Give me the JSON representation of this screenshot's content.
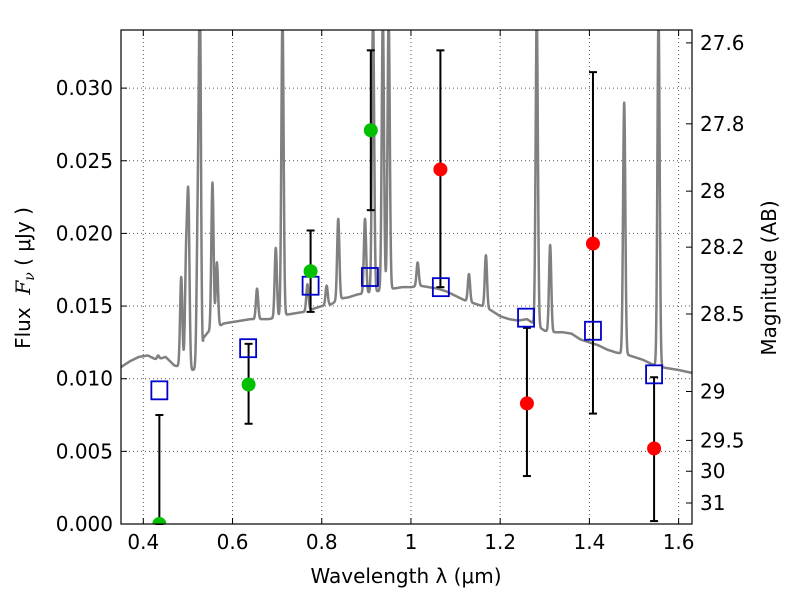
{
  "chart_data": {
    "type": "scatter",
    "xlabel": "Wavelength  λ (μm)",
    "ylabel": {
      "prefix": "Flux  ",
      "var": "F",
      "sub": "ν",
      "units": " ( μJy )"
    },
    "y2label": "Magnitude (AB)",
    "xlim": [
      0.35,
      1.63
    ],
    "ylim": [
      0.0,
      0.034
    ],
    "grid": true,
    "x_ticks": [
      {
        "v": 0.4,
        "label": "0.4"
      },
      {
        "v": 0.6,
        "label": "0.6"
      },
      {
        "v": 0.8,
        "label": "0.8"
      },
      {
        "v": 1.0,
        "label": "1"
      },
      {
        "v": 1.2,
        "label": "1.2"
      },
      {
        "v": 1.4,
        "label": "1.4"
      },
      {
        "v": 1.6,
        "label": "1.6"
      }
    ],
    "y_ticks": [
      {
        "v": 0.0,
        "label": "0.000"
      },
      {
        "v": 0.005,
        "label": "0.005"
      },
      {
        "v": 0.01,
        "label": "0.010"
      },
      {
        "v": 0.015,
        "label": "0.015"
      },
      {
        "v": 0.02,
        "label": "0.020"
      },
      {
        "v": 0.025,
        "label": "0.025"
      },
      {
        "v": 0.03,
        "label": "0.030"
      }
    ],
    "mag_ticks": [
      {
        "v": 27.6,
        "label": "27.6"
      },
      {
        "v": 27.8,
        "label": "27.8"
      },
      {
        "v": 28.0,
        "label": "28"
      },
      {
        "v": 28.2,
        "label": "28.2"
      },
      {
        "v": 28.5,
        "label": "28.5"
      },
      {
        "v": 29.0,
        "label": "29"
      },
      {
        "v": 29.5,
        "label": "29.5"
      },
      {
        "v": 30.0,
        "label": "30"
      },
      {
        "v": 31.0,
        "label": "31"
      }
    ],
    "colors": {
      "spectrum": "#808080",
      "model": "#0000cc",
      "green": "#00c000",
      "red": "#ff0000",
      "errorbar": "#000000",
      "grid": "#555555"
    },
    "spectrum": [
      [
        0.35,
        0.0108
      ],
      [
        0.37,
        0.0112
      ],
      [
        0.39,
        0.0115
      ],
      [
        0.41,
        0.0116
      ],
      [
        0.43,
        0.0113
      ],
      [
        0.45,
        0.0115
      ],
      [
        0.47,
        0.0109
      ],
      [
        0.49,
        0.0108
      ],
      [
        0.51,
        0.0106
      ],
      [
        0.525,
        0.0107
      ],
      [
        0.53,
        0.0094
      ],
      [
        0.535,
        0.0128
      ],
      [
        0.545,
        0.0132
      ],
      [
        0.56,
        0.0134
      ],
      [
        0.58,
        0.0138
      ],
      [
        0.6,
        0.0139
      ],
      [
        0.62,
        0.014
      ],
      [
        0.64,
        0.0141
      ],
      [
        0.66,
        0.0141
      ],
      [
        0.68,
        0.0141
      ],
      [
        0.7,
        0.0142
      ],
      [
        0.72,
        0.0144
      ],
      [
        0.74,
        0.0145
      ],
      [
        0.76,
        0.0146
      ],
      [
        0.78,
        0.0148
      ],
      [
        0.8,
        0.015
      ],
      [
        0.82,
        0.0151
      ],
      [
        0.84,
        0.0155
      ],
      [
        0.86,
        0.0156
      ],
      [
        0.88,
        0.0158
      ],
      [
        0.9,
        0.0159
      ],
      [
        0.92,
        0.016
      ],
      [
        0.94,
        0.0161
      ],
      [
        0.96,
        0.0162
      ],
      [
        0.98,
        0.0163
      ],
      [
        1.0,
        0.0163
      ],
      [
        1.02,
        0.0164
      ],
      [
        1.04,
        0.0163
      ],
      [
        1.06,
        0.0162
      ],
      [
        1.08,
        0.016
      ],
      [
        1.1,
        0.0157
      ],
      [
        1.12,
        0.0154
      ],
      [
        1.14,
        0.0152
      ],
      [
        1.16,
        0.015
      ],
      [
        1.18,
        0.0147
      ],
      [
        1.2,
        0.0143
      ],
      [
        1.22,
        0.0141
      ],
      [
        1.24,
        0.014
      ],
      [
        1.26,
        0.0141
      ],
      [
        1.28,
        0.0137
      ],
      [
        1.3,
        0.0133
      ],
      [
        1.32,
        0.0132
      ],
      [
        1.34,
        0.0132
      ],
      [
        1.36,
        0.0131
      ],
      [
        1.38,
        0.0127
      ],
      [
        1.4,
        0.0125
      ],
      [
        1.42,
        0.0123
      ],
      [
        1.44,
        0.012
      ],
      [
        1.46,
        0.0118
      ],
      [
        1.48,
        0.0117
      ],
      [
        1.5,
        0.0115
      ],
      [
        1.52,
        0.0113
      ],
      [
        1.54,
        0.011
      ],
      [
        1.56,
        0.0108
      ],
      [
        1.58,
        0.0107
      ],
      [
        1.6,
        0.0106
      ],
      [
        1.63,
        0.0104
      ]
    ],
    "emission_lines": [
      {
        "x": 0.433,
        "peak": 0.0116
      },
      {
        "x": 0.485,
        "peak": 0.017
      },
      {
        "x": 0.496,
        "peak": 0.018
      },
      {
        "x": 0.501,
        "peak": 0.022
      },
      {
        "x": 0.522,
        "peak": 0.02
      },
      {
        "x": 0.527,
        "peak": 0.035
      },
      {
        "x": 0.555,
        "peak": 0.0235
      },
      {
        "x": 0.565,
        "peak": 0.018
      },
      {
        "x": 0.655,
        "peak": 0.0162
      },
      {
        "x": 0.697,
        "peak": 0.019
      },
      {
        "x": 0.712,
        "peak": 0.035
      },
      {
        "x": 0.768,
        "peak": 0.0165
      },
      {
        "x": 0.811,
        "peak": 0.0164
      },
      {
        "x": 0.837,
        "peak": 0.021
      },
      {
        "x": 0.897,
        "peak": 0.021
      },
      {
        "x": 0.915,
        "peak": 0.035
      },
      {
        "x": 0.937,
        "peak": 0.035
      },
      {
        "x": 0.95,
        "peak": 0.035
      },
      {
        "x": 1.015,
        "peak": 0.018
      },
      {
        "x": 1.13,
        "peak": 0.0172
      },
      {
        "x": 1.168,
        "peak": 0.0185
      },
      {
        "x": 1.282,
        "peak": 0.035
      },
      {
        "x": 1.312,
        "peak": 0.0192
      },
      {
        "x": 1.478,
        "peak": 0.029
      },
      {
        "x": 1.555,
        "peak": 0.035
      }
    ],
    "model_points": [
      {
        "x": 0.436,
        "y": 0.0092
      },
      {
        "x": 0.635,
        "y": 0.0121
      },
      {
        "x": 0.775,
        "y": 0.0164
      },
      {
        "x": 0.908,
        "y": 0.017
      },
      {
        "x": 1.067,
        "y": 0.0163
      },
      {
        "x": 1.258,
        "y": 0.0142
      },
      {
        "x": 1.408,
        "y": 0.0133
      },
      {
        "x": 1.545,
        "y": 0.0103
      }
    ],
    "observed_points": [
      {
        "x": 0.436,
        "y": 0.0,
        "yerr_low": 0.0,
        "yerr_high": 0.0075,
        "color": "green"
      },
      {
        "x": 0.636,
        "y": 0.0096,
        "yerr_low": 0.0069,
        "yerr_high": 0.0124,
        "color": "green"
      },
      {
        "x": 0.775,
        "y": 0.0174,
        "yerr_low": 0.0146,
        "yerr_high": 0.0202,
        "color": "green"
      },
      {
        "x": 0.91,
        "y": 0.0271,
        "yerr_low": 0.0216,
        "yerr_high": 0.0326,
        "color": "green"
      },
      {
        "x": 1.066,
        "y": 0.0244,
        "yerr_low": 0.0163,
        "yerr_high": 0.0326,
        "color": "red"
      },
      {
        "x": 1.26,
        "y": 0.0083,
        "yerr_low": 0.0033,
        "yerr_high": 0.0135,
        "color": "red"
      },
      {
        "x": 1.408,
        "y": 0.0193,
        "yerr_low": 0.0076,
        "yerr_high": 0.0311,
        "color": "red"
      },
      {
        "x": 1.545,
        "y": 0.0052,
        "yerr_low": 0.0002,
        "yerr_high": 0.0101,
        "color": "red"
      }
    ]
  }
}
